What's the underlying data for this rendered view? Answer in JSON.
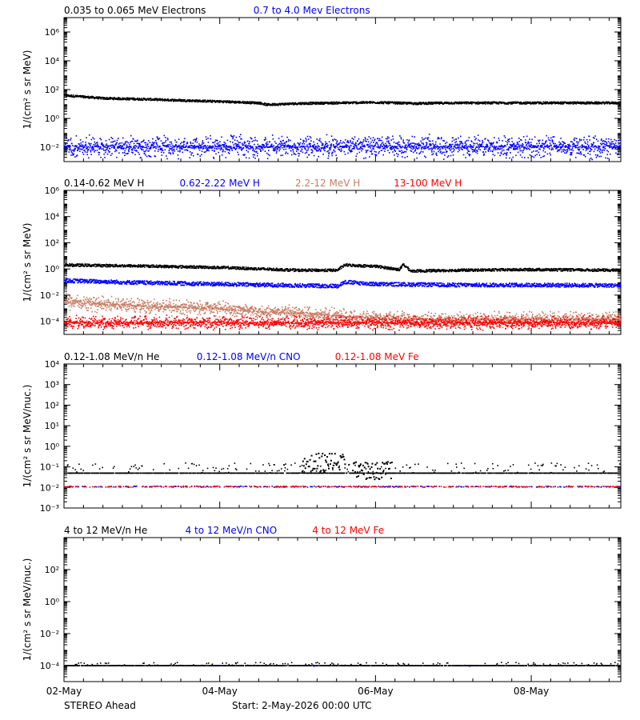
{
  "footer": {
    "left": "STEREO Ahead",
    "start": "Start:  2-May-2026 00:00 UTC"
  },
  "x_axis": {
    "range": [
      0,
      7.15
    ],
    "ticks": [
      {
        "label": "02-May",
        "day": 0
      },
      {
        "label": "04-May",
        "day": 2
      },
      {
        "label": "06-May",
        "day": 4
      },
      {
        "label": "08-May",
        "day": 6
      }
    ],
    "minor_per_day": 4
  },
  "colors": {
    "black": "#000000",
    "blue": "#0000ff",
    "tan": "#c87d64",
    "red": "#ff0000"
  },
  "chart_data": [
    {
      "type": "scatter",
      "ylabel": "1/(cm² s sr MeV)",
      "log_y": true,
      "ylim_exp": [
        -3,
        7
      ],
      "ticks": [
        {
          "exp": 6,
          "label": "10⁶"
        },
        {
          "exp": 4,
          "label": "10⁴"
        },
        {
          "exp": 2,
          "label": "10²"
        },
        {
          "exp": 0,
          "label": "10⁰"
        },
        {
          "exp": -2,
          "label": "10⁻²"
        }
      ],
      "legend": [
        {
          "name": "0.035 to 0.065 MeV Electrons",
          "color": "#000000"
        },
        {
          "name": "0.7 to 4.0 Mev Electrons",
          "color": "#0000ff"
        }
      ],
      "series": [
        {
          "name": "0.035 to 0.065 MeV Electrons",
          "color": "#000000",
          "style": "dense",
          "points": [
            [
              0,
              40
            ],
            [
              0.5,
              25
            ],
            [
              1,
              22
            ],
            [
              1.5,
              18
            ],
            [
              2,
              15
            ],
            [
              2.5,
              12
            ],
            [
              2.6,
              9
            ],
            [
              3,
              11
            ],
            [
              3.5,
              12
            ],
            [
              4,
              13
            ],
            [
              4.5,
              11
            ],
            [
              5,
              12
            ],
            [
              5.5,
              12
            ],
            [
              6,
              12
            ],
            [
              6.5,
              12
            ],
            [
              7.15,
              12
            ]
          ],
          "spread": 0.15
        },
        {
          "name": "0.7 to 4.0 Mev Electrons",
          "color": "#0000ff",
          "style": "band",
          "points": [
            [
              0,
              0.011
            ],
            [
              7.15,
              0.011
            ]
          ],
          "spread": 0.9
        }
      ]
    },
    {
      "type": "scatter",
      "ylabel": "1/(cm² s sr MeV)",
      "log_y": true,
      "ylim_exp": [
        -5,
        6
      ],
      "ticks": [
        {
          "exp": 6,
          "label": "10⁶"
        },
        {
          "exp": 4,
          "label": "10⁴"
        },
        {
          "exp": 2,
          "label": "10²"
        },
        {
          "exp": 0,
          "label": "10⁰"
        },
        {
          "exp": -2,
          "label": "10⁻²"
        },
        {
          "exp": -4,
          "label": "10⁻⁴"
        }
      ],
      "legend": [
        {
          "name": "0.14-0.62 MeV H",
          "color": "#000000"
        },
        {
          "name": "0.62-2.22 MeV H",
          "color": "#0000ff"
        },
        {
          "name": "2.2-12 MeV H",
          "color": "#c87d64"
        },
        {
          "name": "13-100 MeV H",
          "color": "#ff0000"
        }
      ],
      "series": [
        {
          "name": "0.14-0.62 MeV H",
          "color": "#000000",
          "style": "dense",
          "points": [
            [
              0,
              2.0
            ],
            [
              1,
              1.7
            ],
            [
              2,
              1.3
            ],
            [
              3,
              0.8
            ],
            [
              3.5,
              0.8
            ],
            [
              3.6,
              2.0
            ],
            [
              4,
              1.6
            ],
            [
              4.3,
              0.9
            ],
            [
              4.35,
              2.2
            ],
            [
              4.45,
              0.7
            ],
            [
              5,
              0.8
            ],
            [
              6,
              0.9
            ],
            [
              7.15,
              0.8
            ]
          ],
          "spread": 0.2
        },
        {
          "name": "0.62-2.22 MeV H",
          "color": "#0000ff",
          "style": "dense",
          "points": [
            [
              0,
              0.13
            ],
            [
              1,
              0.09
            ],
            [
              2,
              0.07
            ],
            [
              3,
              0.055
            ],
            [
              3.5,
              0.05
            ],
            [
              3.6,
              0.1
            ],
            [
              4,
              0.07
            ],
            [
              5,
              0.06
            ],
            [
              6,
              0.06
            ],
            [
              7.15,
              0.055
            ]
          ],
          "spread": 0.3
        },
        {
          "name": "2.2-12 MeV H",
          "color": "#c87d64",
          "style": "band",
          "points": [
            [
              0,
              0.003
            ],
            [
              1,
              0.0015
            ],
            [
              2,
              0.0009
            ],
            [
              3,
              0.0004
            ],
            [
              4,
              0.00018
            ],
            [
              5,
              0.00012
            ],
            [
              6,
              0.00014
            ],
            [
              7.15,
              0.00015
            ]
          ],
          "spread": 0.7
        },
        {
          "name": "13-100 MeV H",
          "color": "#ff0000",
          "style": "band",
          "points": [
            [
              0,
              8e-05
            ],
            [
              7.15,
              8e-05
            ]
          ],
          "spread": 0.6
        }
      ]
    },
    {
      "type": "scatter",
      "ylabel": "1/(cm² s sr MeV/nuc.)",
      "log_y": true,
      "ylim_exp": [
        -3,
        4
      ],
      "ticks": [
        {
          "exp": 4,
          "label": "10⁴"
        },
        {
          "exp": 3,
          "label": "10³"
        },
        {
          "exp": 2,
          "label": "10²"
        },
        {
          "exp": 1,
          "label": "10¹"
        },
        {
          "exp": 0,
          "label": "10⁰"
        },
        {
          "exp": -1,
          "label": "10⁻¹"
        },
        {
          "exp": -2,
          "label": "10⁻²"
        },
        {
          "exp": -3,
          "label": "10⁻³"
        }
      ],
      "legend": [
        {
          "name": "0.12-1.08 MeV/n He",
          "color": "#000000"
        },
        {
          "name": "0.12-1.08 MeV/n CNO",
          "color": "#0000ff"
        },
        {
          "name": "0.12-1.08 MeV Fe",
          "color": "#ff0000"
        }
      ],
      "series": [
        {
          "name": "0.12-1.08 MeV/n He",
          "color": "#000000",
          "style": "sparse-line",
          "points": [
            [
              0,
              0.05
            ],
            [
              7.15,
              0.05
            ]
          ],
          "spread": 0.5,
          "burst": [
            [
              3.05,
              3.6,
              0.5
            ],
            [
              3.7,
              4.2,
              0.2
            ]
          ]
        },
        {
          "name": "0.12-1.08 MeV/n CNO",
          "color": "#0000ff",
          "style": "sparse",
          "points": [
            [
              0,
              0.011
            ],
            [
              7.15,
              0.011
            ]
          ],
          "spread": 0.05
        },
        {
          "name": "0.12-1.08 MeV Fe",
          "color": "#ff0000",
          "style": "sparse",
          "points": [
            [
              0,
              0.011
            ],
            [
              7.15,
              0.011
            ]
          ],
          "spread": 0.05
        }
      ]
    },
    {
      "type": "scatter",
      "ylabel": "1/(cm² s sr MeV/nuc.)",
      "log_y": true,
      "ylim_exp": [
        -5,
        4
      ],
      "ticks": [
        {
          "exp": 2,
          "label": "10²"
        },
        {
          "exp": 0,
          "label": "10⁰"
        },
        {
          "exp": -2,
          "label": "10⁻²"
        },
        {
          "exp": -4,
          "label": "10⁻⁴"
        }
      ],
      "legend": [
        {
          "name": "4 to 12 MeV/n He",
          "color": "#000000"
        },
        {
          "name": "4 to 12 MeV/n CNO",
          "color": "#0000ff"
        },
        {
          "name": "4 to 12 MeV Fe",
          "color": "#ff0000"
        }
      ],
      "series": [
        {
          "name": "4 to 12 MeV/n He",
          "color": "#000000",
          "style": "sparse-line",
          "points": [
            [
              0,
              0.0001
            ],
            [
              7.15,
              0.0001
            ]
          ],
          "spread": 0.2
        },
        {
          "name": "4 to 12 MeV/n CNO",
          "color": "#0000ff",
          "style": "rare",
          "points": [
            [
              1.3,
              4.5e-06
            ],
            [
              2.0,
              0.000105
            ],
            [
              3.2,
              0.0001
            ],
            [
              5.2,
              0.0001
            ]
          ],
          "spread": 0
        },
        {
          "name": "4 to 12 MeV Fe",
          "color": "#ff0000",
          "style": "rare",
          "points": [
            [
              0.05,
              4.5e-06
            ]
          ],
          "spread": 0
        }
      ]
    }
  ]
}
